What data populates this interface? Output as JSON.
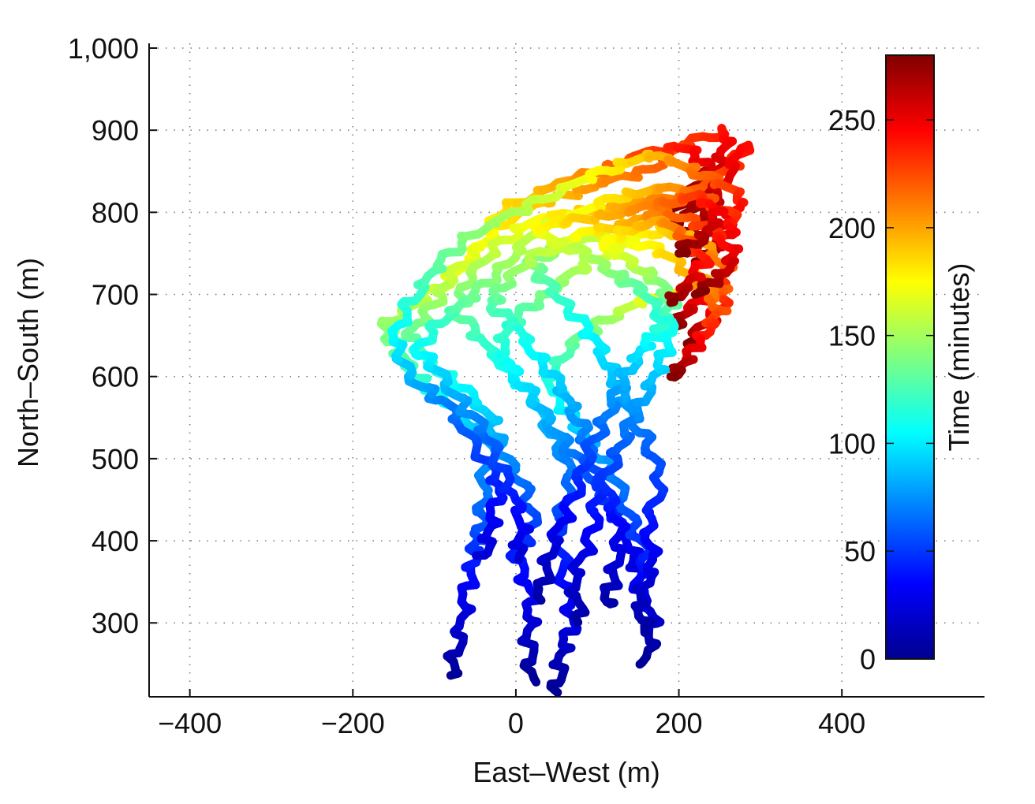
{
  "chart_data": {
    "type": "line",
    "title": "",
    "xlabel": "East–West (m)",
    "ylabel": "North–South (m)",
    "xlim": [
      -450,
      575
    ],
    "ylim": [
      210,
      1000
    ],
    "x_ticks": [
      -400,
      -200,
      0,
      200,
      400
    ],
    "x_tick_labels": [
      "−400",
      "−200",
      "0",
      "200",
      "400"
    ],
    "y_ticks": [
      300,
      400,
      500,
      600,
      700,
      800,
      900,
      1000
    ],
    "y_tick_labels": [
      "300",
      "400",
      "500",
      "600",
      "700",
      "800",
      "900",
      "1,000"
    ],
    "grid": true,
    "colorbar": {
      "label": "Time (minutes)",
      "colormap": "jet",
      "range": [
        0,
        280
      ],
      "ticks": [
        0,
        50,
        100,
        150,
        200,
        250
      ],
      "tick_labels": [
        "0",
        "50",
        "100",
        "150",
        "200",
        "250"
      ]
    },
    "color_encodes": "time (minutes)",
    "series": [
      {
        "points": [
          [
            -80,
            233
          ],
          [
            -70,
            280
          ],
          [
            -60,
            340
          ],
          [
            -50,
            385
          ],
          [
            -45,
            410
          ],
          [
            -40,
            450
          ],
          [
            -30,
            520
          ],
          [
            -60,
            550
          ],
          [
            -100,
            580
          ],
          [
            -130,
            610
          ],
          [
            -150,
            640
          ],
          [
            -160,
            665
          ],
          [
            -120,
            690
          ],
          [
            -80,
            720
          ],
          [
            -40,
            760
          ],
          [
            0,
            800
          ],
          [
            60,
            820
          ],
          [
            100,
            835
          ],
          [
            160,
            850
          ],
          [
            200,
            880
          ],
          [
            260,
            900
          ],
          [
            250,
            860
          ],
          [
            220,
            830
          ],
          [
            190,
            800
          ]
        ],
        "times": [
          0,
          15,
          30,
          45,
          55,
          65,
          80,
          95,
          110,
          122,
          135,
          145,
          155,
          165,
          175,
          185,
          195,
          205,
          215,
          225,
          240,
          255,
          268,
          280
        ]
      },
      {
        "points": [
          [
            20,
            230
          ],
          [
            15,
            280
          ],
          [
            20,
            330
          ],
          [
            0,
            380
          ],
          [
            20,
            420
          ],
          [
            10,
            470
          ],
          [
            -20,
            510
          ],
          [
            -30,
            550
          ],
          [
            -70,
            590
          ],
          [
            -110,
            620
          ],
          [
            -130,
            650
          ],
          [
            -100,
            690
          ],
          [
            -80,
            720
          ],
          [
            -40,
            760
          ],
          [
            -20,
            800
          ],
          [
            40,
            830
          ],
          [
            100,
            850
          ],
          [
            150,
            870
          ],
          [
            210,
            880
          ],
          [
            240,
            850
          ],
          [
            220,
            810
          ],
          [
            190,
            780
          ]
        ],
        "times": [
          0,
          15,
          28,
          40,
          52,
          64,
          76,
          90,
          105,
          118,
          132,
          146,
          158,
          170,
          182,
          195,
          210,
          225,
          240,
          255,
          268,
          280
        ]
      },
      {
        "points": [
          [
            50,
            215
          ],
          [
            55,
            260
          ],
          [
            70,
            300
          ],
          [
            60,
            360
          ],
          [
            50,
            420
          ],
          [
            70,
            470
          ],
          [
            50,
            520
          ],
          [
            30,
            560
          ],
          [
            0,
            600
          ],
          [
            -40,
            640
          ],
          [
            -70,
            680
          ],
          [
            -60,
            720
          ],
          [
            -20,
            760
          ],
          [
            20,
            790
          ],
          [
            80,
            800
          ],
          [
            140,
            810
          ],
          [
            200,
            820
          ],
          [
            260,
            850
          ],
          [
            280,
            880
          ],
          [
            250,
            830
          ],
          [
            230,
            790
          ],
          [
            200,
            760
          ]
        ],
        "times": [
          0,
          12,
          25,
          38,
          50,
          63,
          76,
          90,
          104,
          118,
          132,
          146,
          160,
          173,
          186,
          200,
          214,
          228,
          242,
          256,
          268,
          280
        ]
      },
      {
        "points": [
          [
            -40,
            380
          ],
          [
            -30,
            420
          ],
          [
            -20,
            470
          ],
          [
            -50,
            520
          ],
          [
            -90,
            570
          ],
          [
            -130,
            600
          ],
          [
            -150,
            640
          ],
          [
            -130,
            690
          ],
          [
            -100,
            730
          ],
          [
            -60,
            770
          ],
          [
            0,
            800
          ],
          [
            60,
            830
          ],
          [
            110,
            850
          ],
          [
            160,
            870
          ],
          [
            200,
            860
          ],
          [
            240,
            840
          ],
          [
            280,
            820
          ],
          [
            260,
            790
          ],
          [
            230,
            770
          ],
          [
            210,
            750
          ]
        ],
        "times": [
          20,
          30,
          42,
          55,
          70,
          85,
          100,
          115,
          128,
          140,
          152,
          165,
          178,
          190,
          205,
          220,
          235,
          250,
          265,
          280
        ]
      },
      {
        "points": [
          [
            0,
            380
          ],
          [
            10,
            420
          ],
          [
            -10,
            470
          ],
          [
            -30,
            520
          ],
          [
            -60,
            560
          ],
          [
            -90,
            600
          ],
          [
            -120,
            630
          ],
          [
            -90,
            670
          ],
          [
            -50,
            700
          ],
          [
            -10,
            740
          ],
          [
            30,
            780
          ],
          [
            80,
            800
          ],
          [
            130,
            820
          ],
          [
            180,
            830
          ],
          [
            230,
            820
          ],
          [
            270,
            790
          ],
          [
            250,
            760
          ],
          [
            220,
            740
          ]
        ],
        "times": [
          20,
          32,
          45,
          60,
          75,
          90,
          105,
          120,
          135,
          148,
          160,
          172,
          185,
          200,
          218,
          236,
          258,
          280
        ]
      },
      {
        "points": [
          [
            150,
            360
          ],
          [
            140,
            400
          ],
          [
            120,
            440
          ],
          [
            90,
            480
          ],
          [
            60,
            520
          ],
          [
            30,
            560
          ],
          [
            0,
            600
          ],
          [
            -20,
            640
          ],
          [
            10,
            680
          ],
          [
            50,
            710
          ],
          [
            90,
            740
          ],
          [
            130,
            760
          ],
          [
            180,
            780
          ],
          [
            230,
            760
          ],
          [
            260,
            730
          ],
          [
            240,
            700
          ],
          [
            210,
            680
          ],
          [
            190,
            660
          ]
        ],
        "times": [
          20,
          32,
          45,
          58,
          72,
          86,
          100,
          114,
          128,
          142,
          156,
          170,
          185,
          200,
          218,
          238,
          258,
          280
        ]
      },
      {
        "points": [
          [
            160,
            250
          ],
          [
            170,
            300
          ],
          [
            150,
            340
          ],
          [
            160,
            380
          ],
          [
            140,
            430
          ],
          [
            120,
            480
          ],
          [
            90,
            520
          ],
          [
            60,
            560
          ],
          [
            40,
            600
          ],
          [
            70,
            640
          ],
          [
            110,
            670
          ],
          [
            150,
            690
          ],
          [
            190,
            700
          ],
          [
            230,
            720
          ],
          [
            260,
            700
          ],
          [
            240,
            670
          ],
          [
            210,
            640
          ]
        ],
        "times": [
          0,
          15,
          28,
          42,
          56,
          70,
          85,
          100,
          115,
          130,
          146,
          162,
          178,
          196,
          222,
          250,
          280
        ]
      },
      {
        "points": [
          [
            160,
            290
          ],
          [
            150,
            330
          ],
          [
            170,
            370
          ],
          [
            160,
            420
          ],
          [
            180,
            470
          ],
          [
            160,
            520
          ],
          [
            140,
            560
          ],
          [
            120,
            600
          ],
          [
            100,
            640
          ],
          [
            70,
            680
          ],
          [
            40,
            710
          ],
          [
            20,
            740
          ],
          [
            60,
            760
          ],
          [
            110,
            770
          ],
          [
            160,
            760
          ],
          [
            200,
            740
          ],
          [
            230,
            710
          ],
          [
            250,
            680
          ],
          [
            230,
            650
          ],
          [
            210,
            620
          ],
          [
            190,
            600
          ]
        ],
        "times": [
          5,
          15,
          26,
          38,
          50,
          62,
          75,
          88,
          100,
          112,
          125,
          138,
          150,
          162,
          175,
          190,
          205,
          222,
          240,
          260,
          280
        ]
      },
      {
        "points": [
          [
            110,
            320
          ],
          [
            120,
            360
          ],
          [
            130,
            410
          ],
          [
            110,
            460
          ],
          [
            90,
            500
          ],
          [
            80,
            540
          ],
          [
            60,
            580
          ],
          [
            30,
            620
          ],
          [
            0,
            660
          ],
          [
            -30,
            690
          ],
          [
            -10,
            720
          ],
          [
            30,
            750
          ],
          [
            70,
            770
          ],
          [
            110,
            780
          ],
          [
            150,
            790
          ],
          [
            190,
            800
          ],
          [
            240,
            780
          ],
          [
            270,
            750
          ],
          [
            250,
            720
          ],
          [
            220,
            700
          ]
        ],
        "times": [
          5,
          18,
          30,
          45,
          58,
          72,
          86,
          100,
          114,
          128,
          142,
          156,
          170,
          185,
          200,
          215,
          232,
          250,
          265,
          280
        ]
      },
      {
        "points": [
          [
            30,
            330
          ],
          [
            40,
            380
          ],
          [
            60,
            430
          ],
          [
            80,
            480
          ],
          [
            100,
            530
          ],
          [
            120,
            570
          ],
          [
            140,
            610
          ],
          [
            160,
            640
          ],
          [
            180,
            660
          ],
          [
            190,
            690
          ],
          [
            170,
            720
          ],
          [
            140,
            740
          ],
          [
            110,
            760
          ],
          [
            140,
            780
          ],
          [
            180,
            790
          ],
          [
            210,
            770
          ],
          [
            230,
            740
          ],
          [
            210,
            710
          ],
          [
            190,
            690
          ]
        ],
        "times": [
          5,
          18,
          32,
          46,
          60,
          74,
          88,
          102,
          116,
          130,
          144,
          158,
          172,
          186,
          202,
          220,
          240,
          260,
          280
        ]
      },
      {
        "points": [
          [
            80,
            300
          ],
          [
            70,
            350
          ],
          [
            90,
            400
          ],
          [
            100,
            450
          ],
          [
            120,
            500
          ],
          [
            140,
            540
          ],
          [
            160,
            580
          ],
          [
            180,
            620
          ],
          [
            190,
            660
          ],
          [
            160,
            700
          ],
          [
            130,
            720
          ],
          [
            100,
            740
          ],
          [
            60,
            760
          ],
          [
            20,
            780
          ],
          [
            70,
            790
          ],
          [
            130,
            800
          ],
          [
            180,
            810
          ],
          [
            220,
            820
          ],
          [
            250,
            800
          ],
          [
            230,
            770
          ],
          [
            200,
            750
          ]
        ],
        "times": [
          5,
          18,
          30,
          42,
          55,
          68,
          82,
          96,
          110,
          124,
          136,
          148,
          160,
          172,
          186,
          200,
          214,
          230,
          248,
          265,
          280
        ]
      }
    ]
  }
}
